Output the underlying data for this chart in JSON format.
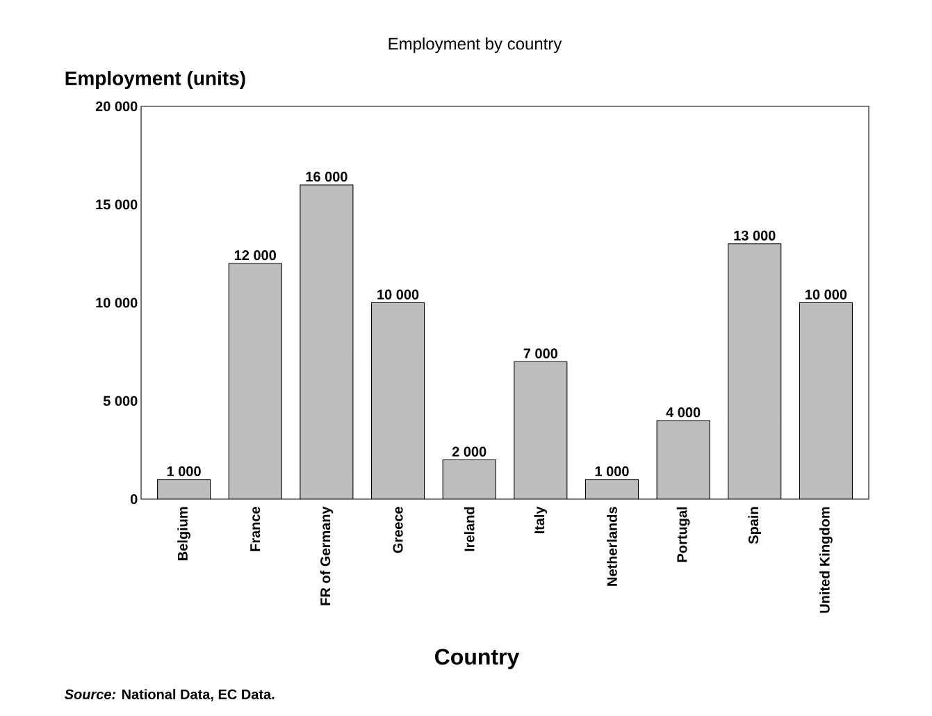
{
  "chart_data": {
    "type": "bar",
    "title": "Employment by country",
    "ylabel": "Employment (units)",
    "xlabel": "Country",
    "categories": [
      "Belgium",
      "France",
      "FR of Germany",
      "Greece",
      "Ireland",
      "Italy",
      "Netherlands",
      "Portugal",
      "Spain",
      "United Kingdom"
    ],
    "values": [
      1000,
      12000,
      16000,
      10000,
      2000,
      7000,
      1000,
      4000,
      13000,
      10000
    ],
    "value_labels": [
      "1 000",
      "12 000",
      "16 000",
      "10 000",
      "2 000",
      "7 000",
      "1 000",
      "4 000",
      "13 000",
      "10 000"
    ],
    "color": "#bdbdbd",
    "ylim": [
      0,
      20000
    ],
    "yticks": [
      {
        "value": 0,
        "label": "0"
      },
      {
        "value": 5000,
        "label": "5 000"
      },
      {
        "value": 10000,
        "label": "10 000"
      },
      {
        "value": 15000,
        "label": "15 000"
      },
      {
        "value": 20000,
        "label": "20 000"
      }
    ],
    "grid": false,
    "annotations": [
      "*Source:* National Data, EC Data."
    ]
  }
}
